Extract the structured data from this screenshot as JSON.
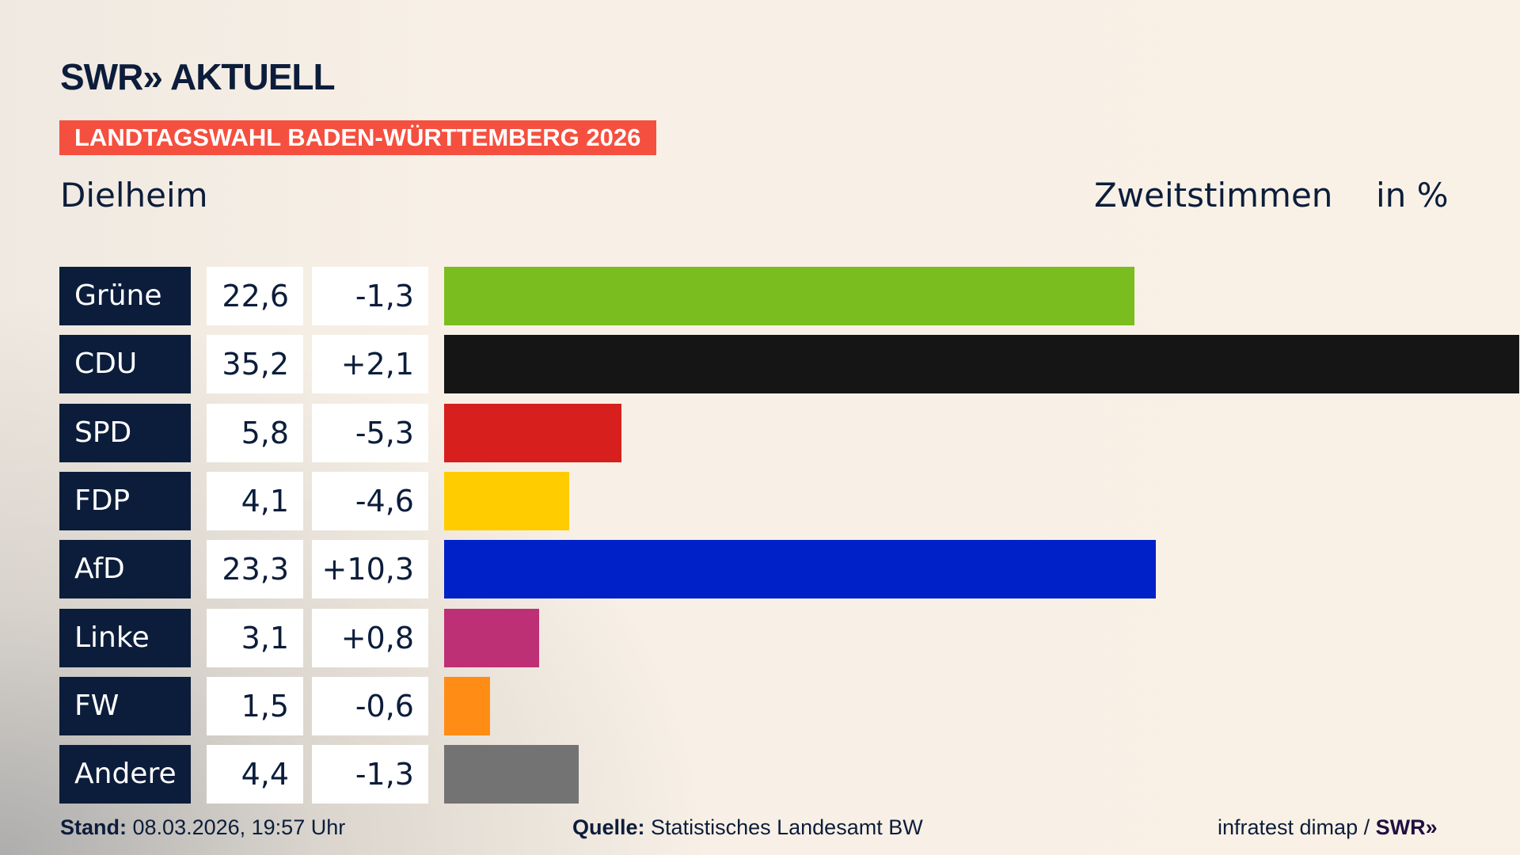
{
  "header": {
    "logo": "SWR» AKTUELL",
    "banner": "LANDTAGSWAHL BADEN-WÜRTTEMBERG 2026",
    "place": "Dielheim",
    "vote_type": "Zweitstimmen",
    "unit": "in %"
  },
  "chart_data": {
    "type": "bar",
    "orientation": "horizontal",
    "categories": [
      "Grüne",
      "CDU",
      "SPD",
      "FDP",
      "AfD",
      "Linke",
      "FW",
      "Andere"
    ],
    "values": [
      22.6,
      35.2,
      5.8,
      4.1,
      23.3,
      3.1,
      1.5,
      4.4
    ],
    "value_labels": [
      "22,6",
      "35,2",
      "5,8",
      "4,1",
      "23,3",
      "3,1",
      "1,5",
      "4,4"
    ],
    "changes": [
      -1.3,
      2.1,
      -5.3,
      -4.6,
      10.3,
      0.8,
      -0.6,
      -1.3
    ],
    "change_labels": [
      "-1,3",
      "+2,1",
      "-5,3",
      "-4,6",
      "+10,3",
      "+0,8",
      "-0,6",
      "-1,3"
    ],
    "colors": [
      "#7abd1e",
      "#151515",
      "#d71f1d",
      "#ffcc00",
      "#0021c8",
      "#be3075",
      "#ff8c14",
      "#737373"
    ],
    "xlim": [
      0,
      35.2
    ],
    "grid": false
  },
  "footer": {
    "stand_label": "Stand:",
    "stand_value": "08.03.2026, 19:57 Uhr",
    "source_label": "Quelle:",
    "source_value": "Statistisches Landesamt BW",
    "credit": "infratest dimap / ",
    "credit_logo": "SWR»"
  }
}
